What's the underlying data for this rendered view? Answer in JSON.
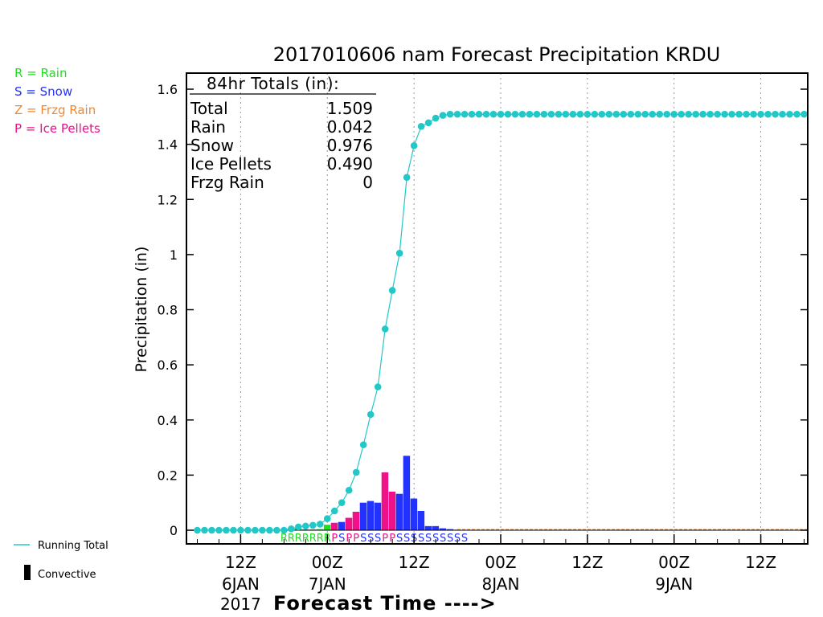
{
  "chart_data": {
    "type": "bar",
    "title": "2017010606 nam Forecast Precipitation KRDU",
    "ylabel": "Precipitation (in)",
    "xlabel": "Forecast Time ---->",
    "ylim": [
      0,
      1.65
    ],
    "yticks": [
      0,
      0.2,
      0.4,
      0.6,
      0.8,
      1,
      1.2,
      1.4,
      1.6
    ],
    "ytick_labels": [
      "0",
      "0.2",
      "0.4",
      "0.6",
      "0.8",
      "1",
      "1.2",
      "1.4",
      "1.6"
    ],
    "x_unit": "forecast hour from 06Z 6JAN 2017",
    "xlim": [
      -1.5,
      84.5
    ],
    "grid": "vertical dotted",
    "xticks": [
      {
        "hour": 6,
        "line1": "12Z",
        "line2": "6JAN",
        "line3": "2017"
      },
      {
        "hour": 18,
        "line1": "00Z",
        "line2": "7JAN",
        "line3": ""
      },
      {
        "hour": 30,
        "line1": "12Z",
        "line2": "",
        "line3": ""
      },
      {
        "hour": 42,
        "line1": "00Z",
        "line2": "8JAN",
        "line3": ""
      },
      {
        "hour": 54,
        "line1": "12Z",
        "line2": "",
        "line3": ""
      },
      {
        "hour": 66,
        "line1": "00Z",
        "line2": "9JAN",
        "line3": ""
      },
      {
        "hour": 78,
        "line1": "12Z",
        "line2": "",
        "line3": ""
      }
    ],
    "totals_box": {
      "header": "84hr Totals (in):",
      "rows": [
        {
          "label": "Total",
          "value": "1.509"
        },
        {
          "label": "Rain",
          "value": "0.042"
        },
        {
          "label": "Snow",
          "value": "0.976"
        },
        {
          "label": "Ice Pellets",
          "value": "0.490"
        },
        {
          "label": "Frzg Rain",
          "value": "0"
        }
      ]
    },
    "legend": [
      {
        "text": "R = Rain",
        "color": "#22dd22"
      },
      {
        "text": "S = Snow",
        "color": "#2233ff"
      },
      {
        "text": "Z = Frzg Rain",
        "color": "#ee8833"
      },
      {
        "text": "P = Ice Pellets",
        "color": "#ee1188"
      }
    ],
    "bottom_legend": [
      {
        "text": "Running Total",
        "kind": "line",
        "color": "#22c8c8"
      },
      {
        "text": "Convective",
        "kind": "bar",
        "color": "#000000"
      }
    ],
    "running_total": {
      "color": "#22c8c8",
      "hours": [
        0,
        1,
        2,
        3,
        4,
        5,
        6,
        7,
        8,
        9,
        10,
        11,
        12,
        13,
        14,
        15,
        16,
        17,
        18,
        19,
        20,
        21,
        22,
        23,
        24,
        25,
        26,
        27,
        28,
        29,
        30,
        31,
        32,
        33,
        34,
        35,
        36,
        37,
        38,
        39,
        40,
        41,
        42,
        43,
        44,
        45,
        46,
        47,
        48,
        49,
        50,
        51,
        52,
        53,
        54,
        55,
        56,
        57,
        58,
        59,
        60,
        61,
        62,
        63,
        64,
        65,
        66,
        67,
        68,
        69,
        70,
        71,
        72,
        73,
        74,
        75,
        76,
        77,
        78,
        79,
        80,
        81,
        82,
        83,
        84
      ],
      "values": [
        0,
        0,
        0,
        0,
        0,
        0,
        0,
        0,
        0,
        0,
        0,
        0,
        0,
        0.005,
        0.012,
        0.015,
        0.018,
        0.022,
        0.042,
        0.07,
        0.1,
        0.145,
        0.21,
        0.31,
        0.42,
        0.52,
        0.73,
        0.87,
        1.005,
        1.28,
        1.395,
        1.465,
        1.478,
        1.495,
        1.505,
        1.509,
        1.509,
        1.509,
        1.509,
        1.509,
        1.509,
        1.509,
        1.509,
        1.509,
        1.509,
        1.509,
        1.509,
        1.509,
        1.509,
        1.509,
        1.509,
        1.509,
        1.509,
        1.509,
        1.509,
        1.509,
        1.509,
        1.509,
        1.509,
        1.509,
        1.509,
        1.509,
        1.509,
        1.509,
        1.509,
        1.509,
        1.509,
        1.509,
        1.509,
        1.509,
        1.509,
        1.509,
        1.509,
        1.509,
        1.509,
        1.509,
        1.509,
        1.509,
        1.509,
        1.509,
        1.509,
        1.509,
        1.509,
        1.509,
        1.509
      ]
    },
    "hourly_precip": [
      {
        "hour": 13,
        "value": 0.005,
        "type": "R",
        "color": "#22dd22"
      },
      {
        "hour": 14,
        "value": 0.007,
        "type": "R",
        "color": "#22dd22"
      },
      {
        "hour": 15,
        "value": 0.003,
        "type": "R",
        "color": "#22dd22"
      },
      {
        "hour": 16,
        "value": 0.003,
        "type": "R",
        "color": "#22dd22"
      },
      {
        "hour": 17,
        "value": 0.004,
        "type": "R",
        "color": "#22dd22"
      },
      {
        "hour": 18,
        "value": 0.02,
        "type": "R",
        "color": "#22dd22"
      },
      {
        "hour": 19,
        "value": 0.027,
        "type": "P",
        "color": "#ee1188"
      },
      {
        "hour": 20,
        "value": 0.03,
        "type": "S",
        "color": "#2233ff"
      },
      {
        "hour": 21,
        "value": 0.045,
        "type": "P",
        "color": "#ee1188"
      },
      {
        "hour": 22,
        "value": 0.067,
        "type": "P",
        "color": "#ee1188"
      },
      {
        "hour": 23,
        "value": 0.1,
        "type": "S",
        "color": "#2233ff"
      },
      {
        "hour": 24,
        "value": 0.106,
        "type": "S",
        "color": "#2233ff"
      },
      {
        "hour": 25,
        "value": 0.1,
        "type": "S",
        "color": "#2233ff"
      },
      {
        "hour": 26,
        "value": 0.21,
        "type": "P",
        "color": "#ee1188"
      },
      {
        "hour": 27,
        "value": 0.14,
        "type": "P",
        "color": "#ee1188"
      },
      {
        "hour": 28,
        "value": 0.132,
        "type": "S",
        "color": "#2233ff"
      },
      {
        "hour": 29,
        "value": 0.27,
        "type": "S",
        "color": "#2233ff"
      },
      {
        "hour": 30,
        "value": 0.115,
        "type": "S",
        "color": "#2233ff"
      },
      {
        "hour": 31,
        "value": 0.07,
        "type": "S",
        "color": "#2233ff"
      },
      {
        "hour": 32,
        "value": 0.015,
        "type": "S",
        "color": "#2233ff"
      },
      {
        "hour": 33,
        "value": 0.015,
        "type": "S",
        "color": "#2233ff"
      },
      {
        "hour": 34,
        "value": 0.007,
        "type": "S",
        "color": "#2233ff"
      },
      {
        "hour": 35,
        "value": 0.004,
        "type": "S",
        "color": "#2233ff"
      },
      {
        "hour": 36,
        "value": 0.002,
        "type": "S",
        "color": "#2233ff"
      }
    ],
    "ptype_letters": [
      {
        "hour": 12,
        "letter": "R",
        "color": "#22dd22"
      },
      {
        "hour": 13,
        "letter": "R",
        "color": "#22dd22"
      },
      {
        "hour": 14,
        "letter": "R",
        "color": "#22dd22"
      },
      {
        "hour": 15,
        "letter": "R",
        "color": "#22dd22"
      },
      {
        "hour": 16,
        "letter": "R",
        "color": "#22dd22"
      },
      {
        "hour": 17,
        "letter": "R",
        "color": "#22dd22"
      },
      {
        "hour": 18,
        "letter": "R",
        "color": "#22dd22"
      },
      {
        "hour": 19,
        "letter": "P",
        "color": "#ee1188"
      },
      {
        "hour": 20,
        "letter": "S",
        "color": "#2233ff"
      },
      {
        "hour": 21,
        "letter": "P",
        "color": "#ee1188"
      },
      {
        "hour": 22,
        "letter": "P",
        "color": "#ee1188"
      },
      {
        "hour": 23,
        "letter": "S",
        "color": "#2233ff"
      },
      {
        "hour": 24,
        "letter": "S",
        "color": "#2233ff"
      },
      {
        "hour": 25,
        "letter": "S",
        "color": "#2233ff"
      },
      {
        "hour": 26,
        "letter": "P",
        "color": "#ee1188"
      },
      {
        "hour": 27,
        "letter": "P",
        "color": "#ee1188"
      },
      {
        "hour": 28,
        "letter": "S",
        "color": "#2233ff"
      },
      {
        "hour": 29,
        "letter": "S",
        "color": "#2233ff"
      },
      {
        "hour": 30,
        "letter": "S",
        "color": "#2233ff"
      },
      {
        "hour": 31,
        "letter": "S",
        "color": "#2233ff"
      },
      {
        "hour": 32,
        "letter": "S",
        "color": "#2233ff"
      },
      {
        "hour": 33,
        "letter": "S",
        "color": "#2233ff"
      },
      {
        "hour": 34,
        "letter": "S",
        "color": "#2233ff"
      },
      {
        "hour": 35,
        "letter": "S",
        "color": "#2233ff"
      },
      {
        "hour": 36,
        "letter": "S",
        "color": "#2233ff"
      },
      {
        "hour": 37,
        "letter": "S",
        "color": "#2233ff"
      }
    ]
  }
}
